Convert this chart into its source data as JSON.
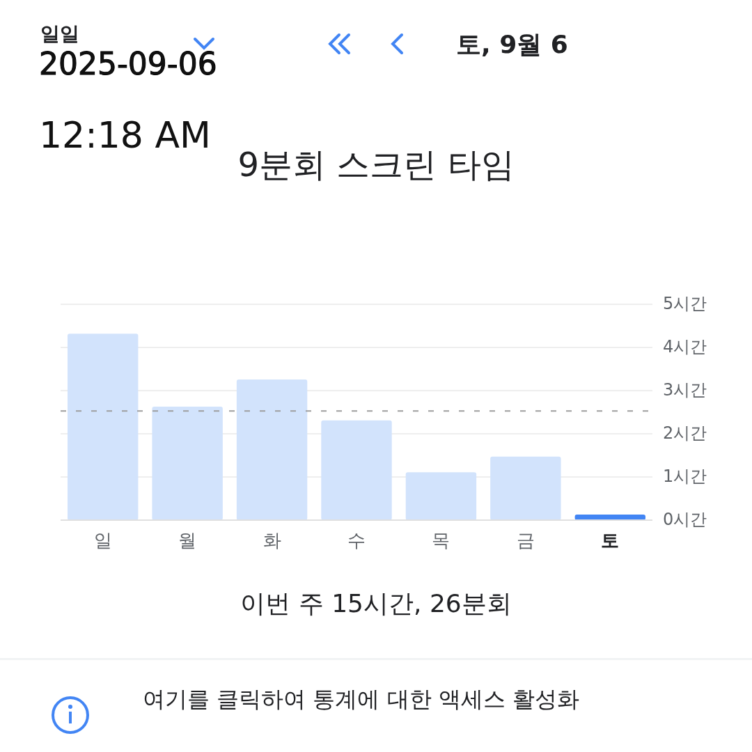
{
  "chart_data": {
    "type": "bar",
    "title": "9분회 스크린 타임",
    "categories": [
      "일",
      "월",
      "화",
      "수",
      "목",
      "금",
      "토"
    ],
    "values": [
      4.32,
      2.63,
      3.26,
      2.31,
      1.11,
      1.47,
      0.13
    ],
    "colors": [
      "#d2e3fc",
      "#d2e3fc",
      "#d2e3fc",
      "#d2e3fc",
      "#d2e3fc",
      "#d2e3fc",
      "#4285f4"
    ],
    "ylim": [
      0,
      5
    ],
    "yticks": [
      {
        "value": 0,
        "label": "0시간"
      },
      {
        "value": 1,
        "label": "1시간"
      },
      {
        "value": 2,
        "label": "2시간"
      },
      {
        "value": 3,
        "label": "3시간"
      },
      {
        "value": 4,
        "label": "4시간"
      },
      {
        "value": 5,
        "label": "5시간"
      }
    ],
    "grid": "y",
    "ref_lines": [
      {
        "axis": "y",
        "value": 2.53,
        "color": "#9e9e9e",
        "line_style": "dashed"
      }
    ],
    "annotations": [
      "일일",
      "토, 9월 6",
      "2025-09-06",
      "12:18 AM",
      "이번 주 15시간, 26분회",
      "여기를 클릭하여 통계에 대한 액세스 활성화"
    ]
  }
}
